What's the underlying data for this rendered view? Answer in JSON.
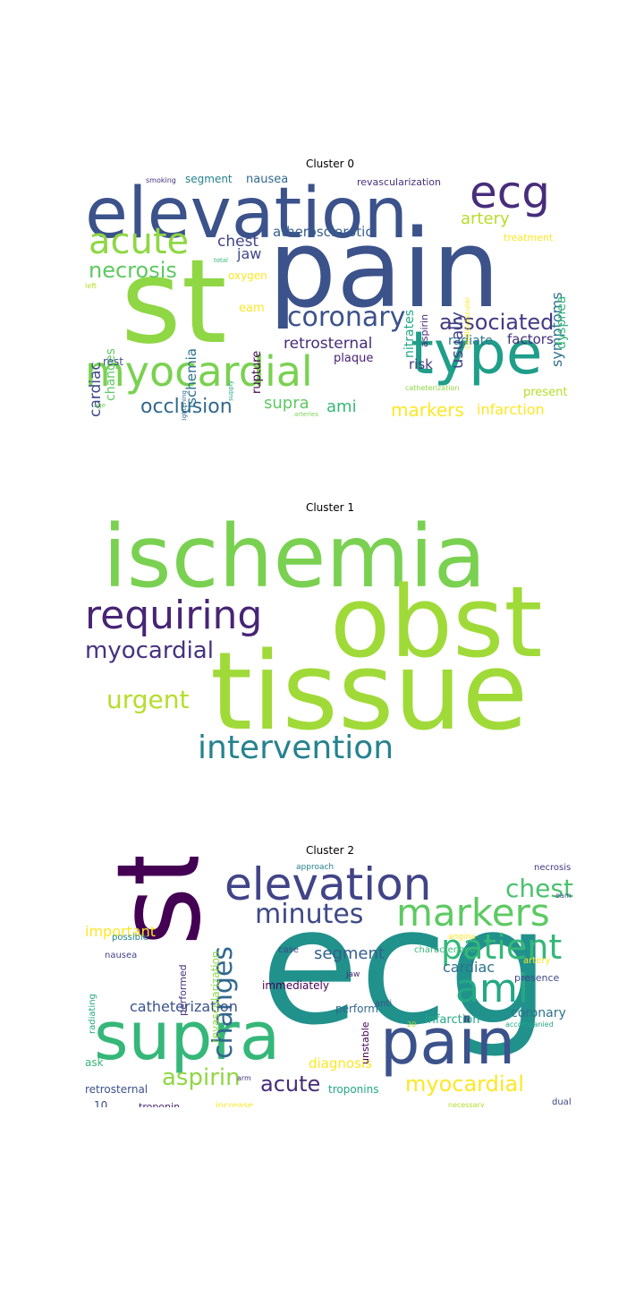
{
  "clusters": [
    {
      "title": "Cluster 0",
      "words": [
        {
          "text": "pain",
          "color": "#3b528b"
        },
        {
          "text": "st",
          "color": "#8fd744"
        },
        {
          "text": "elevation",
          "color": "#3b528b"
        },
        {
          "text": "type",
          "color": "#1f9e89"
        },
        {
          "text": "myocardial",
          "color": "#7ad151"
        },
        {
          "text": "ecg",
          "color": "#472d7b"
        },
        {
          "text": "acute",
          "color": "#8fd744"
        },
        {
          "text": "coronary",
          "color": "#3b528b"
        },
        {
          "text": "associated",
          "color": "#443983"
        },
        {
          "text": "necrosis",
          "color": "#5ec962"
        },
        {
          "text": "occlusion",
          "color": "#31688e"
        },
        {
          "text": "markers",
          "color": "#fde725"
        },
        {
          "text": "infarction",
          "color": "#fde725"
        },
        {
          "text": "ami",
          "color": "#35b779"
        },
        {
          "text": "supra",
          "color": "#5ec962"
        },
        {
          "text": "retrosternal",
          "color": "#472d7b"
        },
        {
          "text": "chest",
          "color": "#414487"
        },
        {
          "text": "atherosclerotic",
          "color": "#355f8d"
        },
        {
          "text": "artery",
          "color": "#b5de2b"
        },
        {
          "text": "radiate",
          "color": "#2a788e"
        },
        {
          "text": "factors",
          "color": "#46327e"
        },
        {
          "text": "jaw",
          "color": "#3e4989"
        },
        {
          "text": "nausea",
          "color": "#31688e"
        },
        {
          "text": "segment",
          "color": "#26828e"
        },
        {
          "text": "revascularization",
          "color": "#46327e"
        },
        {
          "text": "usually",
          "color": "#414487"
        },
        {
          "text": "symptoms",
          "color": "#2c728e"
        },
        {
          "text": "dyspnea",
          "color": "#35b779"
        },
        {
          "text": "nitrates",
          "color": "#22a884"
        },
        {
          "text": "aspirin",
          "color": "#472d7b"
        },
        {
          "text": "cardiac",
          "color": "#3e4989"
        },
        {
          "text": "changes",
          "color": "#5ec962"
        },
        {
          "text": "ischemia",
          "color": "#2c728e"
        },
        {
          "text": "rupture",
          "color": "#440154"
        },
        {
          "text": "eam",
          "color": "#fde725"
        },
        {
          "text": "oxygen",
          "color": "#fde725"
        },
        {
          "text": "risk",
          "color": "#443983"
        },
        {
          "text": "plaque",
          "color": "#482173"
        },
        {
          "text": "rest",
          "color": "#3b528b"
        },
        {
          "text": "present",
          "color": "#b5de2b"
        },
        {
          "text": "treatment",
          "color": "#fde725"
        },
        {
          "text": "smoking",
          "color": "#46327e"
        },
        {
          "text": "total",
          "color": "#35b779"
        },
        {
          "text": "supply",
          "color": "#22a884"
        },
        {
          "text": "tightening",
          "color": "#31688e"
        },
        {
          "text": "left",
          "color": "#b5de2b"
        },
        {
          "text": "cardiovascular",
          "color": "#fde725"
        },
        {
          "text": "catheterization",
          "color": "#8fd744"
        },
        {
          "text": "arteries",
          "color": "#7ad151"
        },
        {
          "text": "age",
          "color": "#6ece58"
        }
      ]
    },
    {
      "title": "Cluster 1",
      "words": [
        {
          "text": "ischemia",
          "color": "#7ad151"
        },
        {
          "text": "requiring",
          "color": "#482475"
        },
        {
          "text": "obst",
          "color": "#a0da39"
        },
        {
          "text": "myocardial",
          "color": "#46327e"
        },
        {
          "text": "tissue",
          "color": "#a0da39"
        },
        {
          "text": "urgent",
          "color": "#b5de2b"
        },
        {
          "text": "intervention",
          "color": "#26828e"
        }
      ]
    },
    {
      "title": "Cluster 2",
      "words": [
        {
          "text": "st",
          "color": "#440154"
        },
        {
          "text": "ecg",
          "color": "#21918c"
        },
        {
          "text": "elevation",
          "color": "#414487"
        },
        {
          "text": "supra",
          "color": "#35b779"
        },
        {
          "text": "pain",
          "color": "#3b528b"
        },
        {
          "text": "markers",
          "color": "#5ec962"
        },
        {
          "text": "patient",
          "color": "#35b779"
        },
        {
          "text": "ami",
          "color": "#22a884"
        },
        {
          "text": "chest",
          "color": "#4ac16d"
        },
        {
          "text": "minutes",
          "color": "#3e4989"
        },
        {
          "text": "changes",
          "color": "#31688e"
        },
        {
          "text": "aspirin",
          "color": "#8fd744"
        },
        {
          "text": "acute",
          "color": "#472d7b"
        },
        {
          "text": "myocardial",
          "color": "#fde725"
        },
        {
          "text": "segment",
          "color": "#355f8d"
        },
        {
          "text": "cardiac",
          "color": "#2c728e"
        },
        {
          "text": "catheterization",
          "color": "#3b528b"
        },
        {
          "text": "important",
          "color": "#fde725"
        },
        {
          "text": "diagnosis",
          "color": "#fde725"
        },
        {
          "text": "coronary",
          "color": "#2c728e"
        },
        {
          "text": "infarction",
          "color": "#22a884"
        },
        {
          "text": "immediately",
          "color": "#440154"
        },
        {
          "text": "perform",
          "color": "#31688e"
        },
        {
          "text": "revascularization",
          "color": "#8fd744"
        },
        {
          "text": "performed",
          "color": "#46327e"
        },
        {
          "text": "troponins",
          "color": "#22a884"
        },
        {
          "text": "retrosternal",
          "color": "#3b528b"
        },
        {
          "text": "ask",
          "color": "#35b779"
        },
        {
          "text": "10",
          "color": "#3e4989"
        },
        {
          "text": "troponin",
          "color": "#482173"
        },
        {
          "text": "increase",
          "color": "#fde725"
        },
        {
          "text": "necessary",
          "color": "#b5de2b"
        },
        {
          "text": "dual",
          "color": "#414487"
        },
        {
          "text": "arm",
          "color": "#46327e"
        },
        {
          "text": "radiating",
          "color": "#22a884"
        },
        {
          "text": "nausea",
          "color": "#414487"
        },
        {
          "text": "possible",
          "color": "#26828e"
        },
        {
          "text": "case",
          "color": "#3e4989"
        },
        {
          "text": "approach",
          "color": "#26828e"
        },
        {
          "text": "characterized",
          "color": "#35b779"
        },
        {
          "text": "angina",
          "color": "#fde725"
        },
        {
          "text": "jaw",
          "color": "#482475"
        },
        {
          "text": "unstable",
          "color": "#440154"
        },
        {
          "text": "anti",
          "color": "#3b528b"
        },
        {
          "text": "artery",
          "color": "#fde725"
        },
        {
          "text": "presence",
          "color": "#3e4989"
        },
        {
          "text": "necrosis",
          "color": "#443983"
        },
        {
          "text": "eam",
          "color": "#3b528b"
        },
        {
          "text": "20",
          "color": "#b5de2b"
        },
        {
          "text": "accompanied",
          "color": "#22a884"
        }
      ]
    }
  ]
}
